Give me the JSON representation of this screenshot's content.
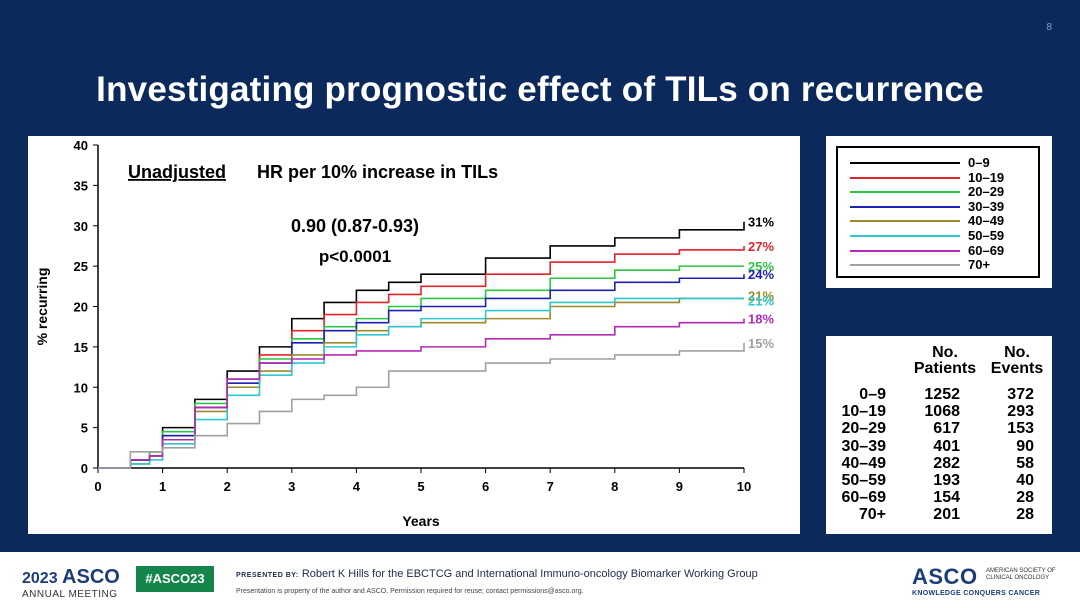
{
  "slide": {
    "number": "8",
    "title": "Investigating prognostic effect of TILs on recurrence"
  },
  "chart_annotations": {
    "hr_prefix": "Unadjusted",
    "hr_suffix": "HR per 10% increase in TILs",
    "hr_value": "0.90 (0.87-0.93)",
    "p_value": "p<0.0001"
  },
  "chart_data": {
    "type": "line",
    "title": "",
    "xlabel": "Years",
    "ylabel": "% recurring",
    "xlim": [
      0,
      10
    ],
    "ylim": [
      0,
      40
    ],
    "x_ticks": [
      "0",
      "1",
      "2",
      "3",
      "4",
      "5",
      "6",
      "7",
      "8",
      "9",
      "10"
    ],
    "y_ticks": [
      "0",
      "5",
      "10",
      "15",
      "20",
      "25",
      "30",
      "35",
      "40"
    ],
    "grid": false,
    "legend_position": "separate box, top-right",
    "series": [
      {
        "name": "0–9",
        "color": "#000000",
        "end_label": "31%",
        "end_label_color": "#000000",
        "x": [
          0,
          0.5,
          0.8,
          1,
          1.5,
          2,
          2.5,
          3,
          3.5,
          4,
          4.5,
          5,
          6,
          7,
          8,
          9,
          10
        ],
        "y": [
          0,
          1,
          2,
          5,
          8.5,
          12,
          15,
          18.5,
          20.5,
          22,
          23,
          24,
          26,
          27.5,
          28.5,
          29.5,
          30.5
        ]
      },
      {
        "name": "10–19",
        "color": "#e0242a",
        "end_label": "27%",
        "end_label_color": "#e0242a",
        "x": [
          0,
          0.5,
          0.8,
          1,
          1.5,
          2,
          2.5,
          3,
          3.5,
          4,
          4.5,
          5,
          6,
          7,
          8,
          9,
          10
        ],
        "y": [
          0,
          1,
          1.5,
          4,
          7.5,
          11,
          14,
          17,
          19,
          20.5,
          21.5,
          22.5,
          24,
          25.5,
          26.5,
          27,
          27.5
        ]
      },
      {
        "name": "20–29",
        "color": "#2cc742",
        "end_label": "25%",
        "end_label_color": "#2cc742",
        "x": [
          0,
          0.5,
          0.8,
          1,
          1.5,
          2,
          2.5,
          3,
          3.5,
          4,
          4.5,
          5,
          6,
          7,
          8,
          9,
          10
        ],
        "y": [
          0,
          1,
          2,
          4.5,
          8,
          11,
          13.5,
          16,
          17.5,
          18.5,
          20,
          21,
          22,
          23.5,
          24.5,
          25,
          25
        ]
      },
      {
        "name": "30–39",
        "color": "#1e22b4",
        "end_label": "24%",
        "end_label_color": "#1e22b4",
        "x": [
          0,
          0.5,
          0.8,
          1,
          1.5,
          2,
          2.5,
          3,
          3.5,
          4,
          4.5,
          5,
          6,
          7,
          8,
          9,
          10
        ],
        "y": [
          0,
          1,
          1.5,
          4,
          7.5,
          10.5,
          13,
          15.5,
          17,
          18,
          19.5,
          20,
          21,
          22,
          23,
          23.5,
          24
        ]
      },
      {
        "name": "40–49",
        "color": "#9c8a2a",
        "end_label": "21%",
        "end_label_color": "#9c8a2a",
        "x": [
          0,
          0.5,
          0.8,
          1,
          1.5,
          2,
          2.5,
          3,
          3.5,
          4,
          4.5,
          5,
          6,
          7,
          8,
          9,
          10
        ],
        "y": [
          0,
          0.5,
          1.5,
          3.5,
          7,
          10,
          12,
          14,
          15.5,
          17,
          17.5,
          18,
          18.5,
          20,
          20.5,
          21,
          21
        ]
      },
      {
        "name": "50–59",
        "color": "#2cc7cf",
        "end_label": "21%",
        "end_label_color": "#2cc7cf",
        "x": [
          0,
          0.5,
          0.8,
          1,
          1.5,
          2,
          2.5,
          3,
          3.5,
          4,
          4.5,
          5,
          6,
          7,
          8,
          9,
          10
        ],
        "y": [
          0,
          0.5,
          1,
          3,
          6,
          9,
          11.5,
          13,
          15,
          16.5,
          17.5,
          18.5,
          19.5,
          20.5,
          21,
          21,
          21
        ]
      },
      {
        "name": "60–69",
        "color": "#b52ab5",
        "end_label": "18%",
        "end_label_color": "#b52ab5",
        "x": [
          0,
          0.5,
          0.8,
          1,
          1.5,
          2,
          2.5,
          3,
          3.5,
          4,
          4.5,
          5,
          6,
          7,
          8,
          9,
          10
        ],
        "y": [
          0,
          1,
          1.5,
          3.5,
          7.5,
          11,
          13,
          13.5,
          14,
          14.5,
          14.5,
          15,
          16,
          16.5,
          17.5,
          18,
          18.5
        ]
      },
      {
        "name": "70+",
        "color": "#a0a0a0",
        "end_label": "15%",
        "end_label_color": "#a0a0a0",
        "x": [
          0,
          0.5,
          0.8,
          1,
          1.5,
          2,
          2.5,
          3,
          3.5,
          4,
          4.5,
          5,
          6,
          7,
          8,
          9,
          10
        ],
        "y": [
          0,
          2,
          2,
          2.5,
          4,
          5.5,
          7,
          8.5,
          9,
          10,
          12,
          12,
          13,
          13.5,
          14,
          14.5,
          15.5
        ]
      }
    ]
  },
  "table": {
    "headers": {
      "patients_1": "No.",
      "patients_2": "Patients",
      "events_1": "No.",
      "events_2": "Events"
    },
    "rows": [
      {
        "group": "0–9",
        "patients": "1252",
        "events": "372"
      },
      {
        "group": "10–19",
        "patients": "1068",
        "events": "293"
      },
      {
        "group": "20–29",
        "patients": "617",
        "events": "153"
      },
      {
        "group": "30–39",
        "patients": "401",
        "events": "90"
      },
      {
        "group": "40–49",
        "patients": "282",
        "events": "58"
      },
      {
        "group": "50–59",
        "patients": "193",
        "events": "40"
      },
      {
        "group": "60–69",
        "patients": "154",
        "events": "28"
      },
      {
        "group": "70+",
        "patients": "201",
        "events": "28"
      }
    ]
  },
  "footer": {
    "meeting_year": "2023",
    "meeting_brand": "ASCO",
    "meeting_name": "ANNUAL MEETING",
    "hashtag": "#ASCO23",
    "presented_by_label": "PRESENTED BY:",
    "presenter": "Robert K Hills  for the EBCTCG and International Immuno-oncology  Biomarker Working Group",
    "permission": "Presentation is property of the author and ASCO. Permission required for reuse; contact permissions@asco.org.",
    "org_brand": "ASCO",
    "org_name": "AMERICAN SOCIETY OF CLINICAL ONCOLOGY",
    "org_tagline": "KNOWLEDGE CONQUERS CANCER"
  }
}
